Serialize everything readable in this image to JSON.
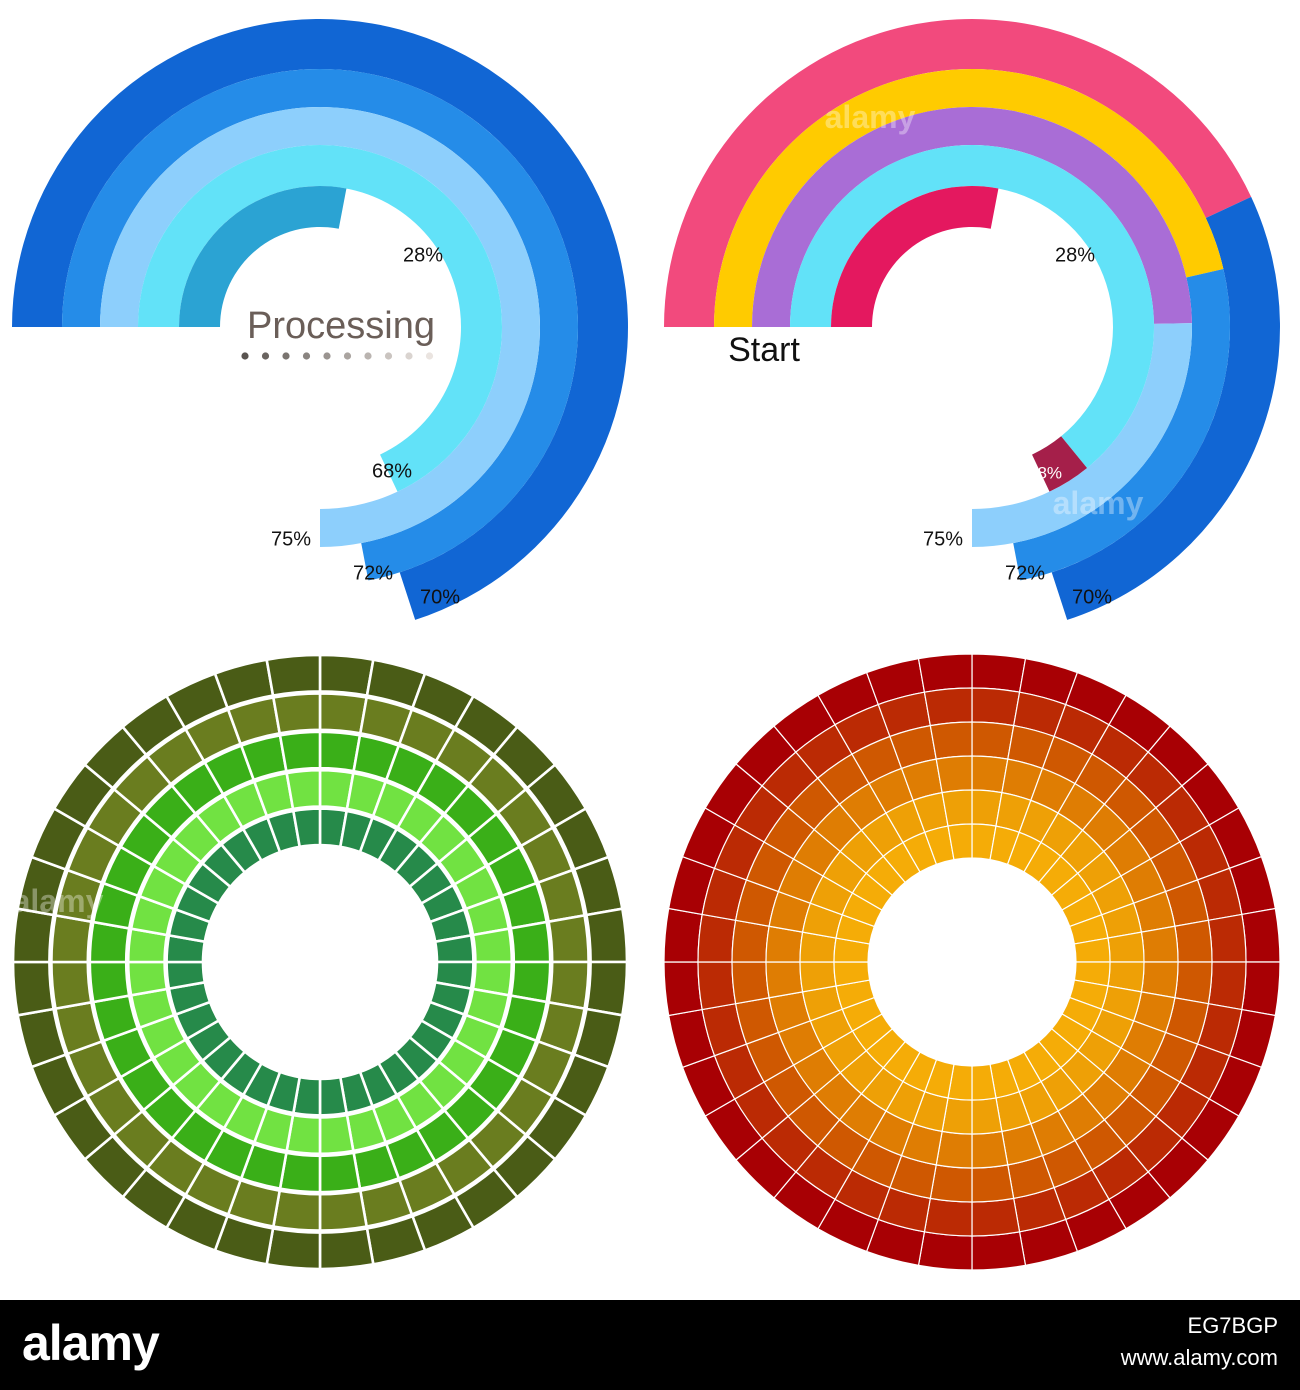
{
  "charts": {
    "processing": {
      "center_label": "Processing",
      "dot_count": 10,
      "rings": [
        {
          "label": "70%",
          "value": 70,
          "color": "#1166d4"
        },
        {
          "label": "72%",
          "value": 72,
          "color": "#258ce8"
        },
        {
          "label": "75%",
          "value": 75,
          "color": "#8dcffc"
        },
        {
          "label": "68%",
          "value": 68,
          "color": "#62e2f8"
        },
        {
          "label": "28%",
          "value": 28,
          "color": "#2ba3d3"
        }
      ]
    },
    "start": {
      "center_label": "Start",
      "rings": [
        {
          "label": "70%",
          "value": 70,
          "colors": [
            "#f24a7d",
            "#1166d4"
          ]
        },
        {
          "label": "72%",
          "value": 72,
          "colors": [
            "#ffcb00",
            "#258ce8"
          ]
        },
        {
          "label": "75%",
          "value": 75,
          "colors": [
            "#a96dd6",
            "#8dcffc"
          ]
        },
        {
          "label": "68%",
          "value": 68,
          "colors": [
            "#62e2f8",
            "#a51f4a"
          ]
        },
        {
          "label": "28%",
          "value": 28,
          "colors": [
            "#e4185f"
          ]
        }
      ]
    },
    "green_wheel": {
      "segments": 36,
      "ring_colors": [
        "#4a5c16",
        "#6a7d1f",
        "#3aaf18",
        "#71e242",
        "#268a4a"
      ]
    },
    "orange_wheel": {
      "segments": 36,
      "ring_colors": [
        "#a80004",
        "#bb2a04",
        "#cf5801",
        "#df7d03",
        "#eea006",
        "#f5ac07"
      ]
    }
  },
  "watermark": {
    "text": "alamy",
    "logo": "alamy",
    "image_id": "EG7BGP",
    "site": "www.alamy.com"
  }
}
